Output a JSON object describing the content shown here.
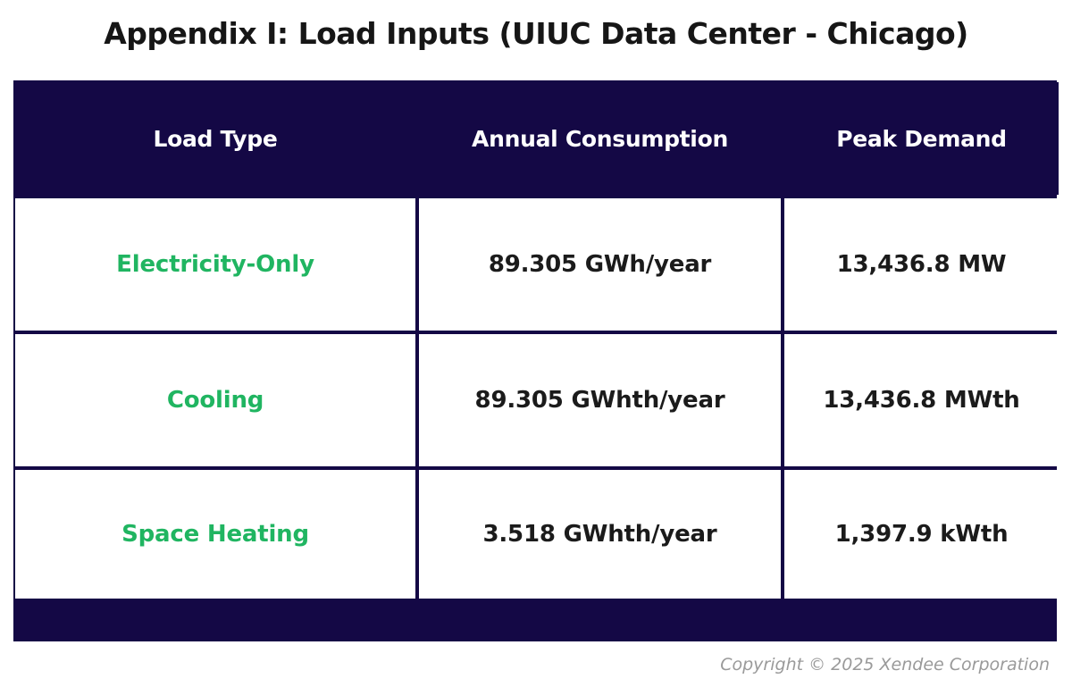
{
  "title": "Appendix I: Load Inputs (UIUC Data Center - Chicago)",
  "colors": {
    "header_bg": "#140845",
    "header_text": "#ffffff",
    "load_type_text": "#20b561",
    "value_text": "#1b1b1b",
    "copyright_text": "#9a9a9a"
  },
  "table": {
    "headers": [
      "Load Type",
      "Annual Consumption",
      "Peak Demand"
    ],
    "rows": [
      {
        "load_type": "Electricity-Only",
        "annual_consumption": "89.305 GWh/year",
        "peak_demand": "13,436.8 MW"
      },
      {
        "load_type": "Cooling",
        "annual_consumption": "89.305 GWhth/year",
        "peak_demand": "13,436.8 MWth"
      },
      {
        "load_type": "Space Heating",
        "annual_consumption": "3.518 GWhth/year",
        "peak_demand": "1,397.9 kWth"
      }
    ]
  },
  "footer": {
    "copyright": "Copyright © 2025 Xendee Corporation"
  }
}
